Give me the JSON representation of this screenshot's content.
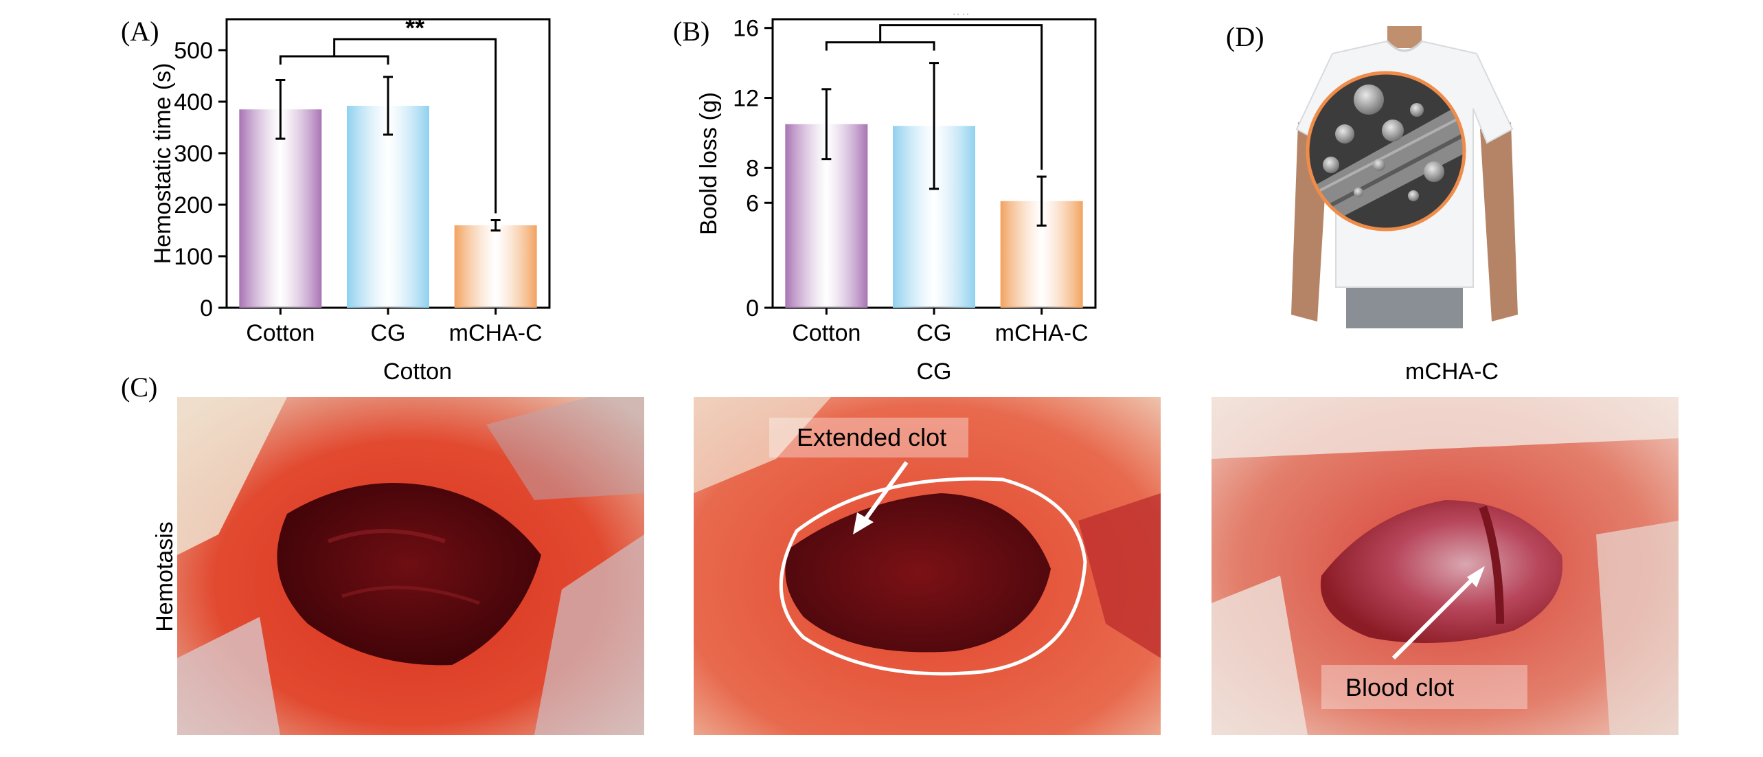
{
  "panels": {
    "a": "(A)",
    "b": "(B)",
    "c": "(C)",
    "d": "(D)"
  },
  "chart_data": [
    {
      "type": "bar",
      "categories": [
        "Cotton",
        "CG",
        "mCHA-C"
      ],
      "values": [
        385,
        392,
        160
      ],
      "errors": [
        57,
        56,
        10
      ],
      "ylabel": "Hemostatic time (s)",
      "ylim": [
        0,
        560
      ],
      "yticks": [
        0,
        100,
        200,
        300,
        400,
        500
      ],
      "significance": "**",
      "colors": [
        "#a873b4",
        "#8fd0ef",
        "#f2a25f"
      ]
    },
    {
      "type": "bar",
      "categories": [
        "Cotton",
        "CG",
        "mCHA-C"
      ],
      "values": [
        10.5,
        10.4,
        6.1
      ],
      "errors": [
        2.0,
        3.6,
        1.4
      ],
      "ylabel": "Boold loss (g)",
      "ylim": [
        0,
        16.5
      ],
      "yticks": [
        0,
        6,
        8,
        12,
        16
      ],
      "significance": "**",
      "colors": [
        "#a873b4",
        "#8fd0ef",
        "#f2a25f"
      ]
    }
  ],
  "photos": {
    "row_label": "Hemotasis",
    "titles": [
      "Cotton",
      "CG",
      "mCHA-C"
    ],
    "annotations": {
      "cg": "Extended clot",
      "mcha": "Blood clot"
    }
  }
}
